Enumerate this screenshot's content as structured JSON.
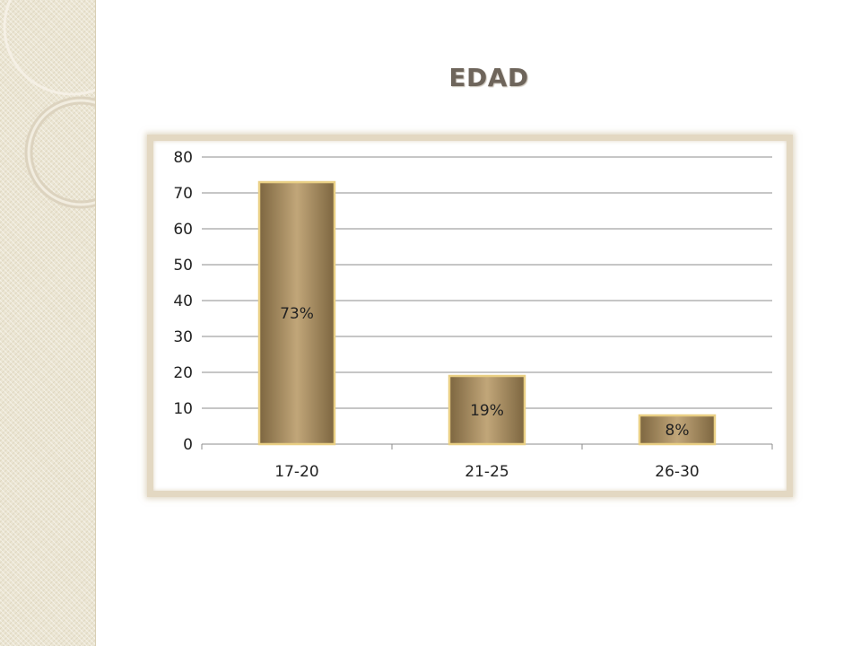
{
  "slide": {
    "title": "EDAD"
  },
  "colors": {
    "bar": "#a48a5d",
    "bar_light": "#c1a679",
    "bar_dark": "#7d6640",
    "bar_border": "#e9cf84",
    "grid": "#8c8c8c"
  },
  "chart_data": {
    "type": "bar",
    "title": "EDAD",
    "categories": [
      "17-20",
      "21-25",
      "26-30"
    ],
    "values": [
      73,
      19,
      8
    ],
    "data_labels": [
      "73%",
      "19%",
      "8%"
    ],
    "ylim": [
      0,
      80
    ],
    "yticks": [
      0,
      10,
      20,
      30,
      40,
      50,
      60,
      70,
      80
    ],
    "grid": true,
    "legend": "none"
  }
}
